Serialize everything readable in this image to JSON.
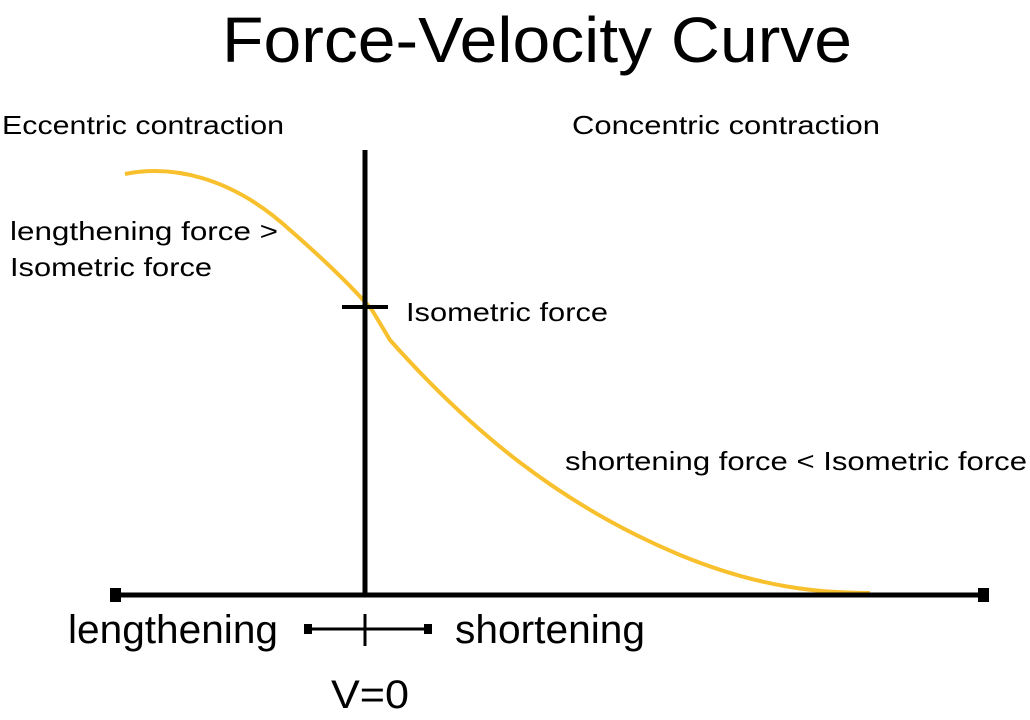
{
  "title": "Force-Velocity Curve",
  "regions": {
    "left": "Eccentric contraction",
    "right": "Concentric contraction"
  },
  "annotations": {
    "lengthening_line1": "lengthening force >",
    "lengthening_line2": "Isometric force",
    "isometric": "Isometric force",
    "shortening": "shortening force < Isometric force"
  },
  "axis": {
    "left": "lengthening",
    "right": "shortening",
    "zero": "V=0"
  }
}
